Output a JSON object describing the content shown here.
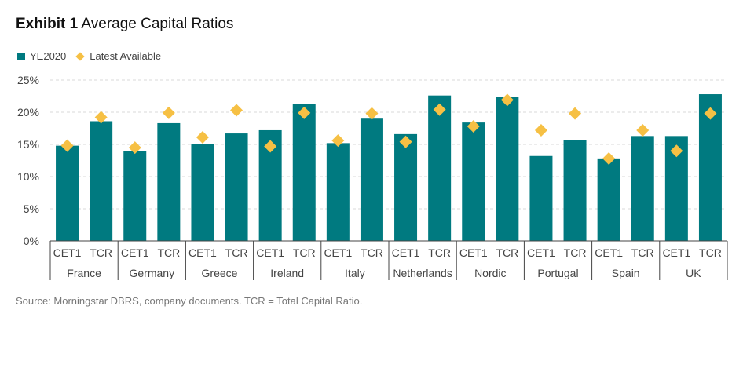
{
  "title": {
    "lead": "Exhibit 1",
    "rest": "Average Capital Ratios"
  },
  "source": "Source: Morningstar DBRS, company documents. TCR = Total Capital Ratio.",
  "colors": {
    "bar": "#007a80",
    "marker": "#f6c044",
    "grid": "#d9d9d9",
    "axis": "#444444"
  },
  "chart_data": {
    "type": "bar",
    "title": "Average Capital Ratios",
    "ylim": [
      0,
      25
    ],
    "yticks": [
      "0%",
      "5%",
      "10%",
      "15%",
      "20%",
      "25%"
    ],
    "grid": true,
    "legend_position": "top-left",
    "groups": [
      "France",
      "Germany",
      "Greece",
      "Ireland",
      "Italy",
      "Netherlands",
      "Nordic",
      "Portugal",
      "Spain",
      "UK"
    ],
    "subcategories": [
      "CET1",
      "TCR"
    ],
    "series": [
      {
        "name": "YE2020",
        "kind": "bar",
        "values": [
          14.8,
          18.6,
          14.0,
          18.3,
          15.1,
          16.7,
          17.2,
          21.3,
          15.2,
          19.0,
          16.6,
          22.6,
          18.4,
          22.4,
          13.2,
          15.7,
          12.7,
          16.3,
          16.3,
          22.8
        ]
      },
      {
        "name": "Latest Available",
        "kind": "marker",
        "values": [
          14.8,
          19.2,
          14.5,
          19.9,
          16.1,
          20.3,
          14.7,
          19.9,
          15.6,
          19.8,
          15.4,
          20.4,
          17.8,
          21.9,
          17.2,
          19.8,
          12.8,
          17.2,
          14.0,
          19.8
        ]
      }
    ]
  }
}
